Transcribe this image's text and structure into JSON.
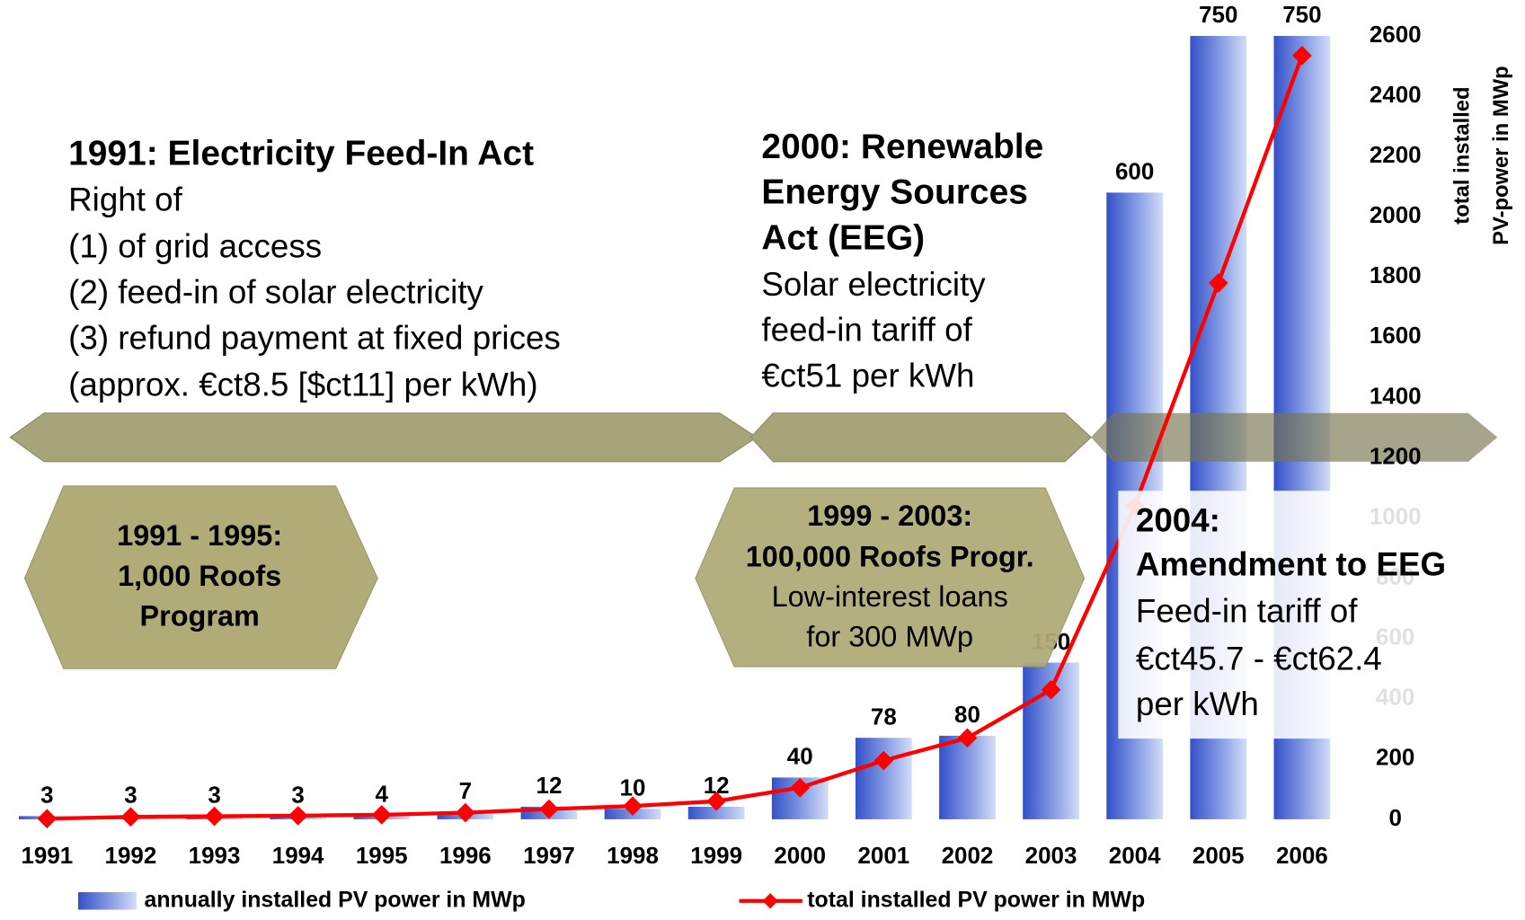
{
  "chart_data": {
    "type": "bar",
    "categories": [
      "1991",
      "1992",
      "1993",
      "1994",
      "1995",
      "1996",
      "1997",
      "1998",
      "1999",
      "2000",
      "2001",
      "2002",
      "2003",
      "2004",
      "2005",
      "2006"
    ],
    "series": [
      {
        "name": "annually installed PV power in MWp",
        "type": "bar",
        "color": "#3d5fd0",
        "values": [
          3,
          3,
          3,
          3,
          4,
          7,
          12,
          10,
          12,
          40,
          78,
          80,
          150,
          600,
          750,
          750
        ]
      },
      {
        "name": "total installed PV power in MWp",
        "type": "line",
        "axis": "y2",
        "color": "#ff0000",
        "values": [
          2,
          8,
          10,
          12,
          15,
          22,
          34,
          44,
          60,
          105,
          195,
          270,
          430,
          1040,
          1780,
          2535
        ]
      }
    ],
    "ylim": [
      0,
      750
    ],
    "y2lim": [
      0,
      2600
    ],
    "y2ticks": [
      0,
      200,
      400,
      600,
      800,
      1000,
      1200,
      1400,
      1600,
      1800,
      2000,
      2200,
      2400,
      2600
    ],
    "y2label": [
      "total installed",
      "PV-power in MWp"
    ],
    "annotations": [
      {
        "title": [
          "1991: Electricity Feed-In Act"
        ],
        "body": [
          "Right of",
          "(1) of grid access",
          "(2) feed-in of solar electricity",
          "(3) refund payment at fixed prices",
          "(approx. €ct8.5 [$ct11] per kWh)"
        ]
      },
      {
        "title": [
          "2000: Renewable",
          "Energy Sources",
          "Act (EEG)"
        ],
        "body": [
          "Solar electricity",
          "feed-in tariff of",
          "€ct51 per kWh"
        ]
      },
      {
        "title": [
          "1991 - 1995:",
          "1,000 Roofs",
          "Program"
        ],
        "body": []
      },
      {
        "title": [
          "1999 - 2003:",
          "100,000 Roofs Progr."
        ],
        "body": [
          "Low-interest loans",
          "for 300 MWp"
        ]
      },
      {
        "title": [
          "2004:",
          "Amendment to EEG"
        ],
        "body": [
          "Feed-in tariff of",
          "€ct45.7 - €ct62.4",
          "per kWh"
        ]
      }
    ]
  }
}
